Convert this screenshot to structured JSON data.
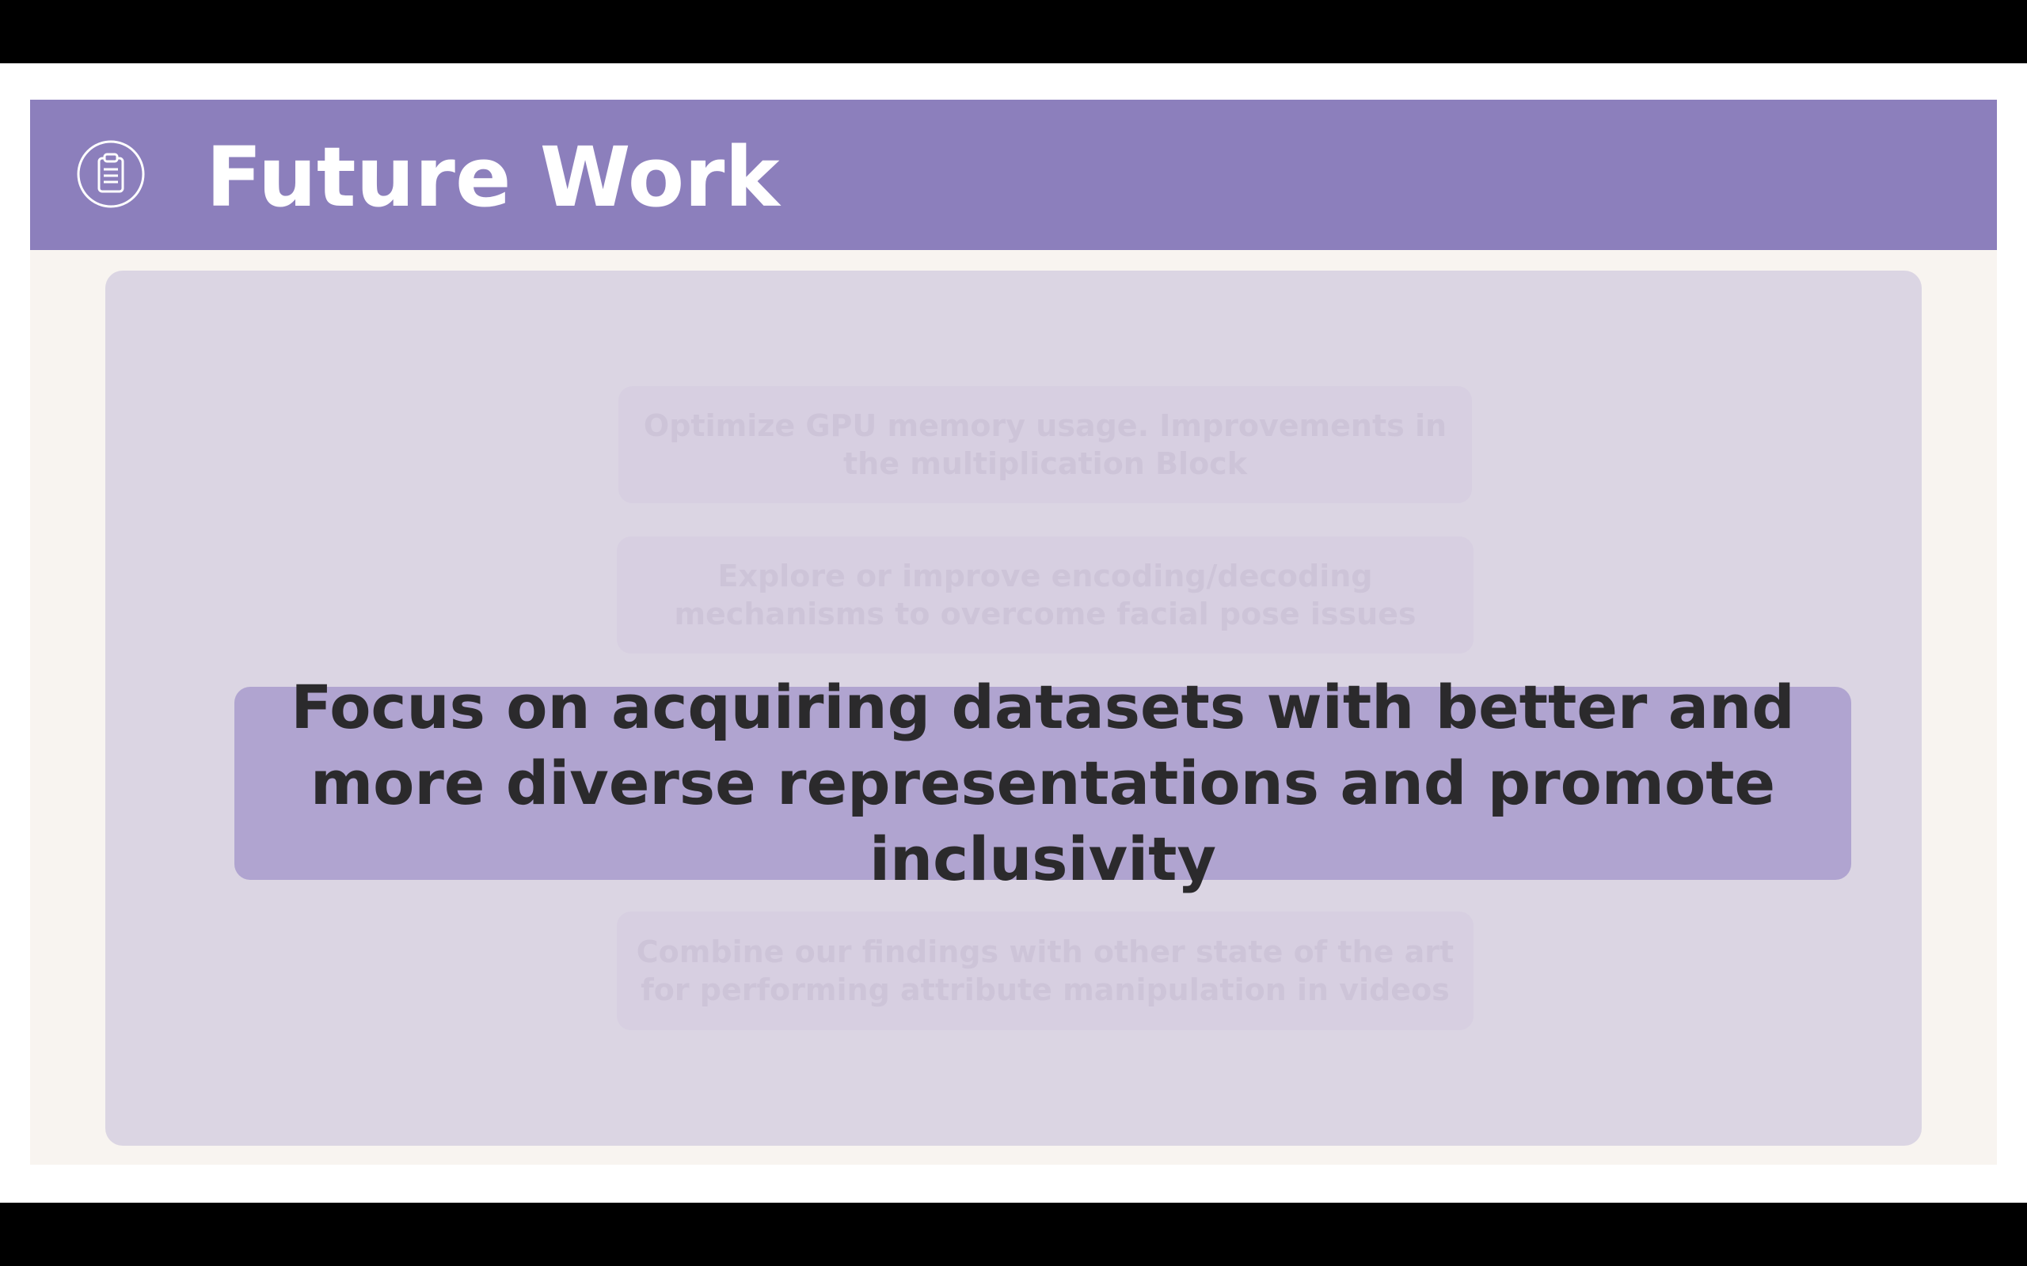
{
  "slide": {
    "title": "Future Work",
    "icon": "clipboard-icon",
    "colors": {
      "header": "#8c7fbc",
      "panel": "#dbd5e3",
      "focus_box": "#b0a4d0",
      "faded_box": "#d7cfe1",
      "background": "#f8f4f0"
    },
    "items": [
      {
        "text": "Optimize GPU memory usage. Improvements in the multiplication Block",
        "state": "faded"
      },
      {
        "text": "Explore or improve encoding/decoding mechanisms to overcome facial pose issues",
        "state": "faded"
      },
      {
        "text": "Focus on acquiring datasets with better and more diverse representations and promote inclusivity",
        "state": "focused"
      },
      {
        "text": "Combine our findings with other state of the art for performing attribute manipulation in videos",
        "state": "faded"
      }
    ]
  }
}
